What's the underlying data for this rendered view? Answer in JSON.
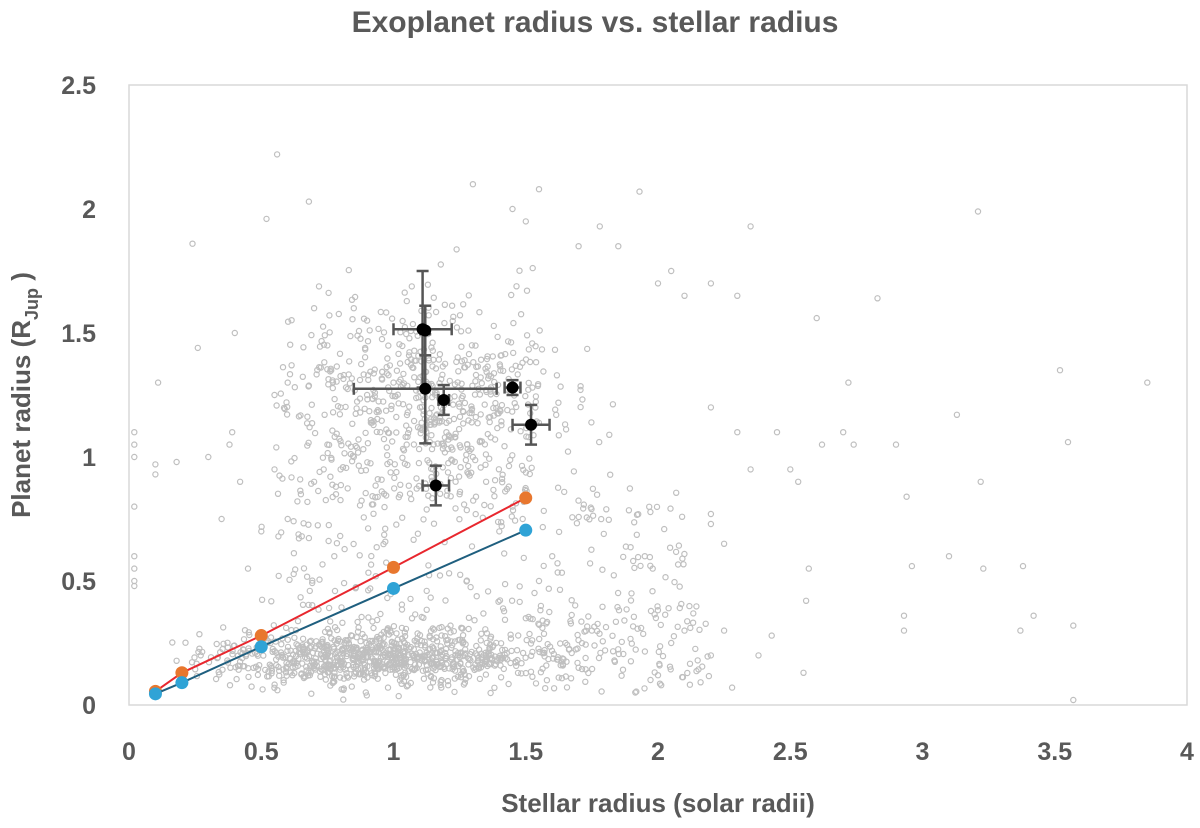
{
  "chart_data": {
    "type": "scatter",
    "title": "Exoplanet radius vs. stellar radius",
    "xlabel": "Stellar radius (solar radii)",
    "ylabel": {
      "main": "Planet radius (R",
      "sub": "Jup",
      "end": " )"
    },
    "xlim": [
      0,
      4
    ],
    "ylim": [
      0,
      2.5
    ],
    "xticks": [
      0,
      0.5,
      1,
      1.5,
      2,
      2.5,
      3,
      3.5,
      4
    ],
    "yticks": [
      0,
      0.5,
      1,
      1.5,
      2,
      2.5
    ],
    "xtick_labels": [
      "0",
      "0.5",
      "1",
      "1.5",
      "2",
      "2.5",
      "3",
      "3.5",
      "4"
    ],
    "ytick_labels": [
      "0",
      "0.5",
      "1",
      "1.5",
      "2",
      "2.5"
    ],
    "grid": false,
    "legend": "none",
    "background_population": {
      "color": "#bfbfbf",
      "marker": "open-circle",
      "approx_count": 1500,
      "points": [
        [
          0.02,
          1.1
        ],
        [
          0.02,
          1.05
        ],
        [
          0.02,
          0.8
        ],
        [
          0.02,
          0.55
        ],
        [
          0.02,
          0.5
        ],
        [
          0.02,
          0.48
        ],
        [
          0.02,
          0.6
        ],
        [
          0.02,
          1.0
        ],
        [
          0.1,
          0.97
        ],
        [
          0.1,
          0.93
        ],
        [
          0.11,
          1.3
        ],
        [
          0.18,
          0.98
        ],
        [
          0.24,
          1.86
        ],
        [
          0.26,
          1.44
        ],
        [
          0.3,
          1.0
        ],
        [
          0.4,
          1.5
        ],
        [
          0.35,
          0.75
        ],
        [
          0.38,
          1.05
        ],
        [
          0.39,
          1.1
        ],
        [
          0.42,
          0.9
        ],
        [
          0.52,
          1.96
        ],
        [
          0.55,
          1.25
        ],
        [
          0.56,
          2.22
        ],
        [
          0.6,
          1.3
        ],
        [
          0.68,
          2.03
        ],
        [
          0.7,
          1.6
        ],
        [
          0.75,
          1.45
        ],
        [
          0.8,
          1.2
        ],
        [
          0.85,
          1.6
        ],
        [
          0.9,
          1.55
        ],
        [
          1.3,
          2.1
        ],
        [
          1.45,
          2.0
        ],
        [
          1.5,
          1.95
        ],
        [
          1.55,
          2.08
        ],
        [
          1.7,
          1.85
        ],
        [
          1.78,
          1.93
        ],
        [
          1.85,
          1.85
        ],
        [
          1.93,
          2.07
        ],
        [
          2.0,
          1.7
        ],
        [
          2.05,
          1.75
        ],
        [
          2.1,
          1.65
        ],
        [
          2.2,
          1.7
        ],
        [
          2.3,
          1.65
        ],
        [
          2.35,
          1.93
        ],
        [
          2.2,
          1.2
        ],
        [
          2.3,
          1.1
        ],
        [
          2.35,
          0.95
        ],
        [
          2.45,
          1.1
        ],
        [
          2.5,
          0.95
        ],
        [
          2.53,
          0.9
        ],
        [
          2.6,
          1.56
        ],
        [
          2.62,
          1.05
        ],
        [
          2.7,
          1.1
        ],
        [
          2.72,
          1.3
        ],
        [
          2.74,
          1.05
        ],
        [
          2.83,
          1.64
        ],
        [
          2.9,
          1.05
        ],
        [
          2.93,
          0.36
        ],
        [
          2.93,
          0.3
        ],
        [
          2.94,
          0.84
        ],
        [
          2.96,
          0.56
        ],
        [
          3.1,
          0.6
        ],
        [
          3.13,
          1.17
        ],
        [
          3.21,
          1.99
        ],
        [
          3.22,
          0.9
        ],
        [
          3.23,
          0.55
        ],
        [
          3.37,
          0.3
        ],
        [
          3.38,
          0.56
        ],
        [
          3.42,
          0.36
        ],
        [
          3.52,
          1.35
        ],
        [
          3.55,
          1.06
        ],
        [
          3.57,
          0.32
        ],
        [
          3.57,
          0.02
        ],
        [
          3.85,
          1.3
        ],
        [
          2.56,
          0.42
        ],
        [
          2.57,
          0.55
        ],
        [
          2.55,
          0.13
        ],
        [
          2.43,
          0.28
        ],
        [
          2.38,
          0.2
        ],
        [
          2.25,
          0.3
        ],
        [
          2.28,
          0.07
        ],
        [
          2.2,
          0.2
        ],
        [
          2.2,
          0.77
        ],
        [
          2.2,
          0.73
        ],
        [
          2.25,
          0.65
        ],
        [
          2.15,
          0.18
        ],
        [
          2.1,
          0.3
        ],
        [
          2.05,
          0.25
        ],
        [
          2.0,
          0.12
        ],
        [
          1.98,
          0.55
        ],
        [
          1.95,
          0.6
        ],
        [
          1.9,
          0.45
        ],
        [
          1.8,
          0.22
        ],
        [
          1.75,
          0.3
        ],
        [
          1.7,
          0.15
        ],
        [
          1.65,
          0.25
        ],
        [
          1.6,
          0.6
        ],
        [
          1.55,
          0.5
        ],
        [
          1.5,
          0.35
        ],
        [
          1.45,
          0.8
        ],
        [
          1.4,
          0.7
        ],
        [
          1.35,
          0.9
        ],
        [
          1.3,
          1.0
        ],
        [
          1.25,
          0.85
        ],
        [
          1.2,
          1.1
        ],
        [
          1.15,
          0.95
        ],
        [
          1.1,
          1.2
        ],
        [
          1.05,
          1.05
        ],
        [
          1.0,
          1.3
        ],
        [
          0.95,
          1.1
        ],
        [
          0.9,
          1.25
        ],
        [
          0.85,
          1.0
        ],
        [
          0.8,
          0.95
        ],
        [
          0.75,
          1.05
        ],
        [
          0.7,
          0.9
        ],
        [
          0.65,
          0.85
        ],
        [
          0.6,
          0.75
        ],
        [
          0.55,
          0.95
        ],
        [
          0.5,
          0.7
        ],
        [
          0.45,
          0.55
        ]
      ]
    },
    "series": [
      {
        "name": "",
        "color": "#e8772e",
        "line_color": "#e8272e",
        "x": [
          0.1,
          0.2,
          0.5,
          1.0,
          1.5
        ],
        "y": [
          0.055,
          0.13,
          0.28,
          0.555,
          0.835
        ]
      },
      {
        "name": "",
        "color": "#2fa3d6",
        "line_color": "#1f5f7f",
        "x": [
          0.1,
          0.2,
          0.5,
          1.0,
          1.5
        ],
        "y": [
          0.045,
          0.09,
          0.235,
          0.47,
          0.705
        ]
      }
    ],
    "measured_planets": {
      "color": "#000000",
      "errorbar_color": "#555555",
      "points": [
        {
          "x": 1.11,
          "y": 1.515,
          "xerr": 0.11,
          "yerr": 0.235
        },
        {
          "x": 1.12,
          "y": 1.51,
          "xerr": 0.0,
          "yerr": 0.1
        },
        {
          "x": 1.12,
          "y": 1.275,
          "xerr": 0.27,
          "yerr": 0.22
        },
        {
          "x": 1.19,
          "y": 1.23,
          "xerr": 0.02,
          "yerr": 0.06
        },
        {
          "x": 1.45,
          "y": 1.28,
          "xerr": 0.03,
          "yerr": 0.03
        },
        {
          "x": 1.52,
          "y": 1.13,
          "xerr": 0.07,
          "yerr": 0.08
        },
        {
          "x": 1.16,
          "y": 0.885,
          "xerr": 0.05,
          "yerr": 0.08
        }
      ]
    }
  }
}
